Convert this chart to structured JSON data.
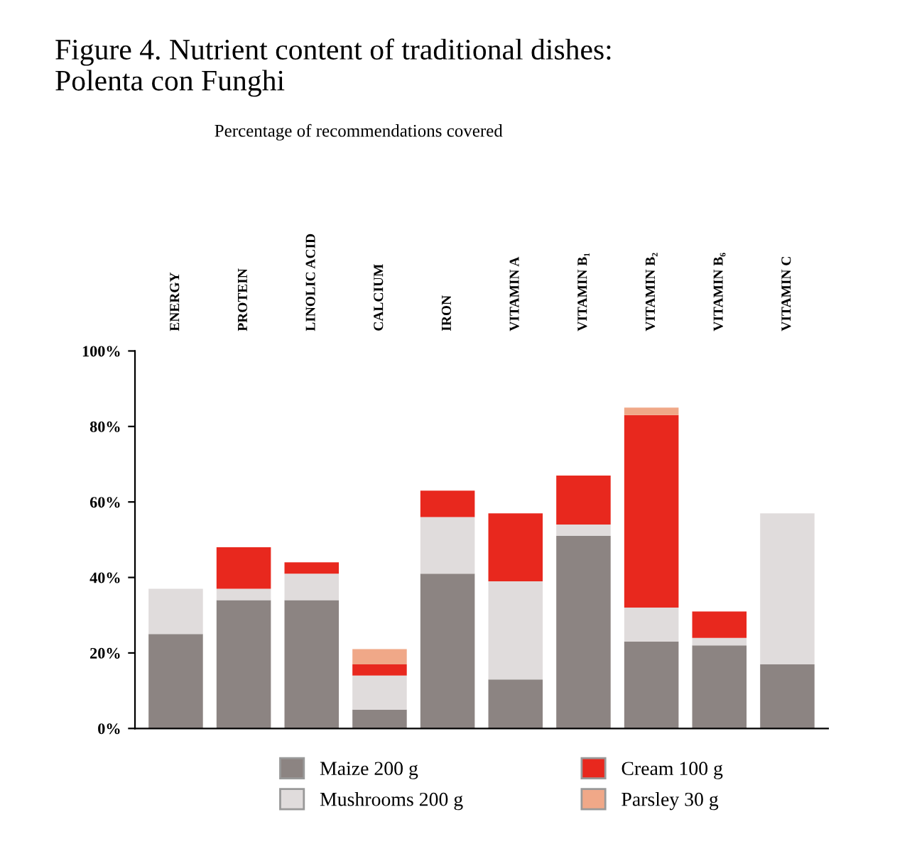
{
  "chart_data": {
    "type": "bar",
    "title": "Figure 4. Nutrient content of traditional dishes:\nPolenta con Funghi",
    "subtitle": "Percentage of recommendations covered",
    "categories": [
      "ENERGY",
      "PROTEIN",
      "LINOLIC ACID",
      "CALCIUM",
      "IRON",
      "VITAMIN A",
      "VITAMIN B₁",
      "VITAMIN B₂",
      "VITAMIN B₆",
      "VITAMIN C"
    ],
    "stacked": true,
    "series": [
      {
        "name": "Maize 200 g",
        "color": "#8c8482",
        "values": [
          25,
          34,
          34,
          5,
          41,
          13,
          51,
          23,
          22,
          17
        ]
      },
      {
        "name": "Mushrooms 200 g",
        "color": "#e0dcdc",
        "values": [
          12,
          3,
          7,
          9,
          15,
          26,
          3,
          9,
          2,
          40
        ]
      },
      {
        "name": "Cream 100 g",
        "color": "#e8281e",
        "values": [
          0,
          11,
          3,
          3,
          7,
          18,
          13,
          51,
          7,
          0
        ]
      },
      {
        "name": "Parsley 30 g",
        "color": "#f0a888",
        "values": [
          0,
          0,
          0,
          4,
          0,
          0,
          0,
          2,
          0,
          0
        ]
      }
    ],
    "ylim": [
      0,
      100
    ],
    "yticks": [
      {
        "value": 0,
        "label": "0%"
      },
      {
        "value": 20,
        "label": "20%"
      },
      {
        "value": 40,
        "label": "40%"
      },
      {
        "value": 60,
        "label": "60%"
      },
      {
        "value": 80,
        "label": "80%"
      },
      {
        "value": 100,
        "label": "100%"
      }
    ],
    "grid": false,
    "legend": "bottom"
  }
}
